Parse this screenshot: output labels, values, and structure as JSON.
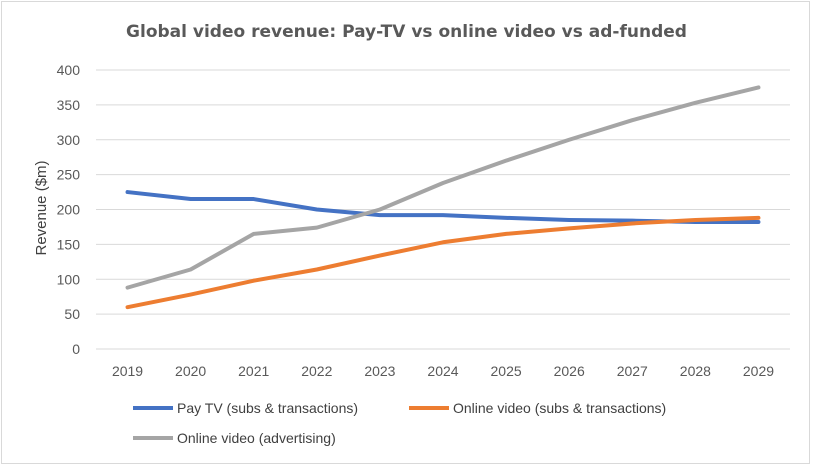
{
  "chart_data": {
    "type": "line",
    "title": "Global video revenue: Pay-TV vs online video vs ad-funded",
    "xlabel": "",
    "ylabel": "Revenue ($m)",
    "ylim": [
      0,
      400
    ],
    "yticks": [
      0,
      50,
      100,
      150,
      200,
      250,
      300,
      350,
      400
    ],
    "x": [
      "2019",
      "2020",
      "2021",
      "2022",
      "2023",
      "2024",
      "2025",
      "2026",
      "2027",
      "2028",
      "2029"
    ],
    "grid": "horizontal",
    "legend_position": "bottom",
    "series": [
      {
        "name": "Pay TV (subs & transactions)",
        "color": "#4472c4",
        "values": [
          225,
          215,
          215,
          200,
          192,
          192,
          188,
          185,
          184,
          182,
          182
        ]
      },
      {
        "name": "Online video (subs & transactions)",
        "color": "#ed7d31",
        "values": [
          60,
          78,
          98,
          114,
          134,
          153,
          165,
          173,
          180,
          185,
          188
        ]
      },
      {
        "name": "Online video (advertising)",
        "color": "#a5a5a5",
        "values": [
          88,
          114,
          165,
          174,
          200,
          238,
          270,
          300,
          328,
          353,
          375
        ]
      }
    ]
  }
}
